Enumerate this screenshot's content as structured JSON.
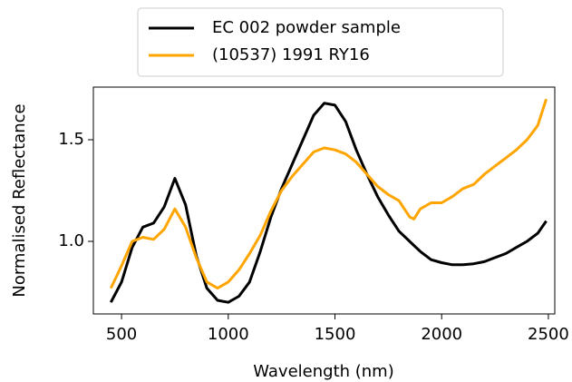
{
  "chart_data": {
    "type": "line",
    "xlabel": "Wavelength (nm)",
    "ylabel": "Normalised Reflectance",
    "x": [
      450,
      500,
      550,
      600,
      650,
      700,
      750,
      800,
      850,
      900,
      950,
      1000,
      1050,
      1100,
      1150,
      1200,
      1250,
      1300,
      1350,
      1400,
      1450,
      1500,
      1550,
      1600,
      1650,
      1700,
      1750,
      1800,
      1850,
      1870,
      1900,
      1950,
      2000,
      2050,
      2100,
      2150,
      2200,
      2250,
      2300,
      2350,
      2400,
      2450,
      2490
    ],
    "series": [
      {
        "name": "EC 002 powder sample",
        "color": "#000000",
        "values": [
          0.7,
          0.8,
          0.97,
          1.07,
          1.09,
          1.17,
          1.31,
          1.18,
          0.93,
          0.77,
          0.71,
          0.7,
          0.73,
          0.8,
          0.95,
          1.12,
          1.26,
          1.38,
          1.5,
          1.62,
          1.68,
          1.67,
          1.59,
          1.45,
          1.33,
          1.22,
          1.13,
          1.05,
          1.0,
          0.98,
          0.95,
          0.91,
          0.895,
          0.885,
          0.885,
          0.89,
          0.9,
          0.92,
          0.94,
          0.97,
          1.0,
          1.04,
          1.1
        ]
      },
      {
        "name": "(10537) 1991 RY16",
        "color": "#ffa500",
        "values": [
          0.77,
          0.88,
          1.0,
          1.02,
          1.01,
          1.06,
          1.16,
          1.07,
          0.92,
          0.8,
          0.77,
          0.8,
          0.86,
          0.94,
          1.03,
          1.15,
          1.25,
          1.32,
          1.38,
          1.44,
          1.46,
          1.45,
          1.43,
          1.39,
          1.33,
          1.27,
          1.23,
          1.2,
          1.12,
          1.11,
          1.16,
          1.19,
          1.19,
          1.22,
          1.26,
          1.28,
          1.33,
          1.37,
          1.41,
          1.45,
          1.5,
          1.57,
          1.7
        ]
      }
    ],
    "xlim": [
      368,
      2530
    ],
    "xticks": [
      500,
      1000,
      1500,
      2000,
      2500
    ],
    "ylim": [
      0.643,
      1.759
    ],
    "yticks": [
      {
        "value": 1.0,
        "label": "1.0"
      },
      1.5
    ],
    "legend": "upper center"
  }
}
